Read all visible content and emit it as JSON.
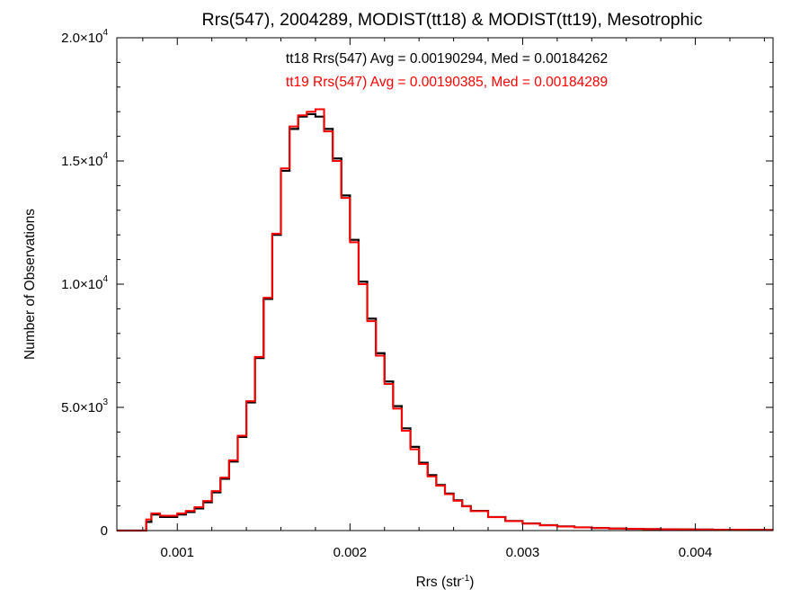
{
  "chart_data": {
    "type": "line",
    "title": "Rrs(547), 2004289, MODIST(tt18) & MODIST(tt19), Mesotrophic",
    "xlabel": "Rrs (str",
    "xlabel_sup": "-1",
    "xlabel_tail": ")",
    "ylabel": "Number of Observations",
    "xlim": [
      0.00065,
      0.00445
    ],
    "ylim": [
      0,
      20000
    ],
    "x_ticks": [
      {
        "value": 0.001,
        "label": "0.001"
      },
      {
        "value": 0.002,
        "label": "0.002"
      },
      {
        "value": 0.003,
        "label": "0.003"
      },
      {
        "value": 0.004,
        "label": "0.004"
      }
    ],
    "y_ticks": [
      {
        "value": 0,
        "mant": "0",
        "exp": ""
      },
      {
        "value": 5000,
        "mant": "5.0×10",
        "exp": "3"
      },
      {
        "value": 10000,
        "mant": "1.0×10",
        "exp": "4"
      },
      {
        "value": 15000,
        "mant": "1.5×10",
        "exp": "4"
      },
      {
        "value": 20000,
        "mant": "2.0×10",
        "exp": "4"
      }
    ],
    "annotations": [
      {
        "text": "tt18 Rrs(547) Avg = 0.00190294, Med = 0.00184262",
        "color": "#000000"
      },
      {
        "text": "tt19 Rrs(547) Avg = 0.00190385, Med = 0.00184289",
        "color": "#ff0000"
      }
    ],
    "series": [
      {
        "color": "#000000",
        "x": [
          0.00065,
          0.0007,
          0.00075,
          0.0008,
          0.00082,
          0.00085,
          0.0009,
          0.00095,
          0.001,
          0.00105,
          0.0011,
          0.00115,
          0.0012,
          0.00125,
          0.0013,
          0.00135,
          0.0014,
          0.00145,
          0.0015,
          0.00155,
          0.0016,
          0.00165,
          0.0017,
          0.00175,
          0.0018,
          0.00185,
          0.0019,
          0.00195,
          0.002,
          0.00205,
          0.0021,
          0.00215,
          0.0022,
          0.00225,
          0.0023,
          0.00235,
          0.0024,
          0.00245,
          0.0025,
          0.00255,
          0.0026,
          0.00265,
          0.0027,
          0.0028,
          0.0029,
          0.003,
          0.0031,
          0.0032,
          0.0033,
          0.0034,
          0.0035,
          0.0036,
          0.0037,
          0.0038,
          0.0039,
          0.004,
          0.0041,
          0.0042,
          0.0043,
          0.0044,
          0.00445
        ],
        "y": [
          0,
          0,
          0,
          0,
          350,
          650,
          550,
          550,
          650,
          750,
          900,
          1150,
          1550,
          2100,
          2800,
          3800,
          5200,
          7000,
          9400,
          12000,
          14600,
          16300,
          16800,
          16900,
          16800,
          16300,
          15100,
          13600,
          11800,
          10100,
          8600,
          7200,
          6050,
          5050,
          4150,
          3400,
          2750,
          2250,
          1850,
          1500,
          1230,
          990,
          800,
          550,
          390,
          290,
          220,
          170,
          130,
          105,
          85,
          70,
          60,
          50,
          45,
          40,
          35,
          30,
          28,
          25,
          25
        ]
      },
      {
        "color": "#ff0000",
        "x": [
          0.00065,
          0.0007,
          0.00075,
          0.0008,
          0.00082,
          0.00085,
          0.0009,
          0.00095,
          0.001,
          0.00105,
          0.0011,
          0.00115,
          0.0012,
          0.00125,
          0.0013,
          0.00135,
          0.0014,
          0.00145,
          0.0015,
          0.00155,
          0.0016,
          0.00165,
          0.0017,
          0.00175,
          0.0018,
          0.00185,
          0.0019,
          0.00195,
          0.002,
          0.00205,
          0.0021,
          0.00215,
          0.0022,
          0.00225,
          0.0023,
          0.00235,
          0.0024,
          0.00245,
          0.0025,
          0.00255,
          0.0026,
          0.00265,
          0.0027,
          0.0028,
          0.0029,
          0.003,
          0.0031,
          0.0032,
          0.0033,
          0.0034,
          0.0035,
          0.0036,
          0.0037,
          0.0038,
          0.0039,
          0.004,
          0.0041,
          0.0042,
          0.0043,
          0.0044,
          0.00445
        ],
        "y": [
          0,
          0,
          0,
          0,
          450,
          700,
          600,
          600,
          700,
          800,
          950,
          1200,
          1600,
          2150,
          2850,
          3850,
          5250,
          7050,
          9450,
          12050,
          14700,
          16400,
          16850,
          17000,
          17100,
          16200,
          15000,
          13500,
          11700,
          10000,
          8500,
          7100,
          5950,
          4950,
          4050,
          3300,
          2700,
          2200,
          1820,
          1480,
          1210,
          980,
          790,
          545,
          385,
          285,
          215,
          165,
          128,
          103,
          83,
          68,
          58,
          49,
          44,
          39,
          34,
          30,
          28,
          25,
          25
        ]
      }
    ],
    "grid": false,
    "legend": "none"
  }
}
